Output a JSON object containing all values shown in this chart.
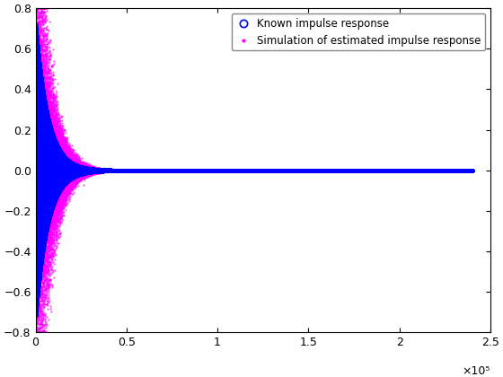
{
  "title": "",
  "xlabel": "",
  "ylabel": "",
  "xlim": [
    0,
    250000
  ],
  "ylim": [
    -0.8,
    0.8
  ],
  "xticks": [
    0,
    50000,
    100000,
    150000,
    200000,
    250000
  ],
  "xtick_labels": [
    "0",
    "0.5",
    "1",
    "1.5",
    "2",
    "2.5"
  ],
  "xlabel_exp": "×10⁵",
  "yticks": [
    -0.8,
    -0.6,
    -0.4,
    -0.2,
    0,
    0.2,
    0.4,
    0.6,
    0.8
  ],
  "n_samples": 240000,
  "circle_color": "#0000ff",
  "magenta_color": "#ff00ff",
  "legend_circle_label": "Known impulse response",
  "legend_dot_label": "Simulation of estimated impulse response",
  "background_color": "#ffffff",
  "figsize": [
    5.6,
    4.2
  ],
  "dpi": 100
}
